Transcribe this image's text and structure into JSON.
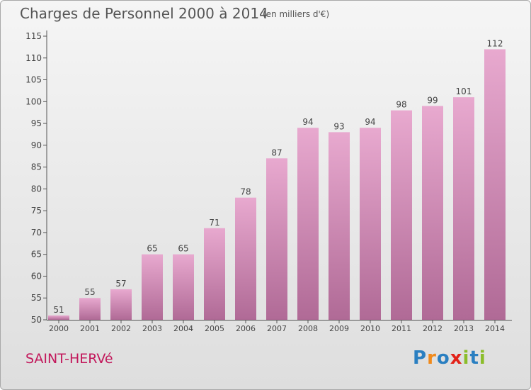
{
  "chart_data": {
    "type": "bar",
    "title": "Charges de Personnel 2000 à 2014",
    "subtitle": "(en milliers d'€)",
    "categories": [
      "2000",
      "2001",
      "2002",
      "2003",
      "2004",
      "2005",
      "2006",
      "2007",
      "2008",
      "2009",
      "2010",
      "2011",
      "2012",
      "2013",
      "2014"
    ],
    "values": [
      51,
      55,
      57,
      65,
      65,
      71,
      78,
      87,
      94,
      93,
      94,
      98,
      99,
      101,
      112
    ],
    "ylim": [
      50,
      115
    ],
    "yticks": [
      50,
      55,
      60,
      65,
      70,
      75,
      80,
      85,
      90,
      95,
      100,
      105,
      110,
      115
    ],
    "xlabel": "",
    "ylabel": "",
    "grid": false,
    "colors": {
      "bar_top": "#e8a9cf",
      "bar_bottom": "#b06a96",
      "axis": "#555555",
      "label": "#444444"
    }
  },
  "commune": "SAINT-HERVé",
  "logo": {
    "letters": [
      "P",
      "r",
      "o",
      "x",
      "i",
      "t",
      "i"
    ],
    "colors": [
      "#2a7fc1",
      "#f08a1c",
      "#2a7fc1",
      "#e2231a",
      "#8bbd2a",
      "#2a7fc1",
      "#8bbd2a"
    ]
  }
}
